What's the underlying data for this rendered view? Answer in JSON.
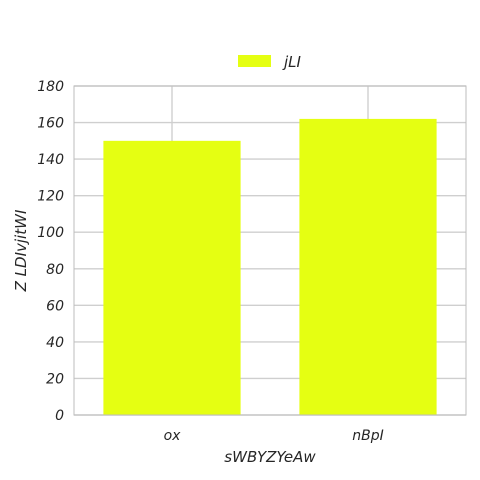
{
  "chart_data": {
    "type": "bar",
    "categories": [
      "ox",
      "nBpI"
    ],
    "series": [
      {
        "name": "jLI",
        "values": [
          150,
          162
        ],
        "color": "#e5ff12"
      }
    ],
    "title": "",
    "xlabel": "sWBYZYeAw",
    "ylabel": "Z LDIvjitWI",
    "ylim": [
      0,
      180
    ],
    "yticks": [
      0,
      20,
      40,
      60,
      80,
      100,
      120,
      140,
      160,
      180
    ],
    "grid": true,
    "legend": "top-center"
  }
}
